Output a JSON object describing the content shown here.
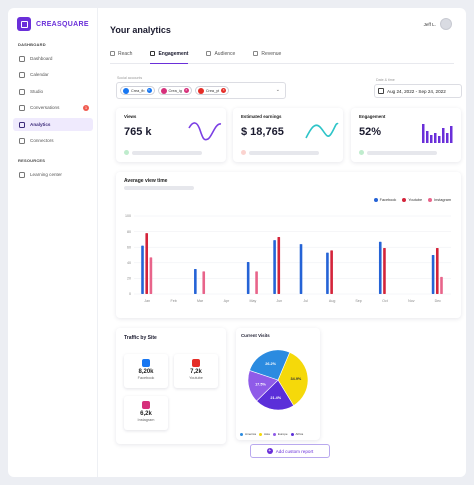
{
  "brand": {
    "name": "CREASQUARE"
  },
  "sidebar": {
    "dashboard_label": "DASHBOARD",
    "items": [
      {
        "label": "Dashboard",
        "icon": "home-icon"
      },
      {
        "label": "Calendar",
        "icon": "calendar-icon"
      },
      {
        "label": "Studio",
        "icon": "video-icon"
      },
      {
        "label": "Conversations",
        "icon": "chat-icon",
        "badge": "1"
      },
      {
        "label": "Analytics",
        "icon": "analytics-icon",
        "active": true
      },
      {
        "label": "Connectors",
        "icon": "link-icon"
      }
    ],
    "resources_label": "RESOURCES",
    "resources": [
      {
        "label": "Learning center",
        "icon": "learning-icon"
      }
    ]
  },
  "header": {
    "title": "Your analytics",
    "user": "Jeff L."
  },
  "tabs": [
    {
      "label": "Reach",
      "icon": "reach-icon"
    },
    {
      "label": "Engagement",
      "icon": "engagement-icon",
      "active": true
    },
    {
      "label": "Audience",
      "icon": "audience-icon"
    },
    {
      "label": "Revenue",
      "icon": "revenue-icon"
    }
  ],
  "filters": {
    "accounts_label": "Social accounts",
    "accounts": [
      {
        "label": "Crea_fb",
        "color": "#1877f2"
      },
      {
        "label": "Crea_ig",
        "color": "#d6307b"
      },
      {
        "label": "Crea_yt",
        "color": "#e52d27"
      }
    ],
    "date_label": "Date & time",
    "date_value": "Aug 24, 2022 - Sep 24, 2022"
  },
  "kpis": [
    {
      "title": "Views",
      "value": "765 k",
      "spark_color": "#7b3fe4",
      "trend_color": "#3cc76a"
    },
    {
      "title": "Estimated earnings",
      "value": "$ 18,765",
      "spark_color": "#2ec4c8",
      "trend_color": "#f05a4f"
    },
    {
      "title": "Engagement",
      "value": "52%",
      "spark_color": "#6a2fd9",
      "trend_color": "#3cc76a"
    }
  ],
  "chart_data": {
    "type": "bar",
    "title": "Average view time",
    "categories": [
      "Jan",
      "Feb",
      "Mar",
      "Apr",
      "May",
      "Jun",
      "Jul",
      "Aug",
      "Sep",
      "Oct",
      "Nov",
      "Dec"
    ],
    "series": [
      {
        "name": "Facebook",
        "color": "#2563d6",
        "values": [
          62,
          0,
          32,
          0,
          41,
          69,
          64,
          53,
          0,
          67,
          0,
          50
        ]
      },
      {
        "name": "Youtube",
        "color": "#d4243a",
        "values": [
          78,
          0,
          0,
          0,
          0,
          73,
          0,
          56,
          0,
          59,
          0,
          59
        ]
      },
      {
        "name": "Instagram",
        "color": "#e8648a",
        "values": [
          47,
          0,
          29,
          0,
          29,
          0,
          0,
          0,
          0,
          0,
          0,
          22
        ]
      }
    ],
    "ylim": [
      0,
      100
    ],
    "yticks": [
      0,
      20,
      40,
      60,
      80,
      100
    ],
    "legend": "top-right"
  },
  "traffic": {
    "title": "Traffic by Site",
    "sites": [
      {
        "name": "Facebook",
        "value": "8,20k",
        "color": "#1877f2",
        "icon": "facebook-icon"
      },
      {
        "name": "Youtube",
        "value": "7,2k",
        "color": "#e52d27",
        "icon": "youtube-icon"
      },
      {
        "name": "Instagram",
        "value": "6,2k",
        "color": "#d6307b",
        "icon": "instagram-icon"
      }
    ]
  },
  "visits": {
    "title": "Current Visits",
    "slices": [
      {
        "name": "America",
        "percent": 26.2,
        "color": "#2b8be0"
      },
      {
        "name": "Asia",
        "percent": 34.9,
        "color": "#f5d90a"
      },
      {
        "name": "Europe",
        "percent": 17.5,
        "color": "#8f5be8"
      },
      {
        "name": "Africa",
        "percent": 21.4,
        "color": "#5b2fd9"
      }
    ]
  },
  "add_report": "Add custom report"
}
